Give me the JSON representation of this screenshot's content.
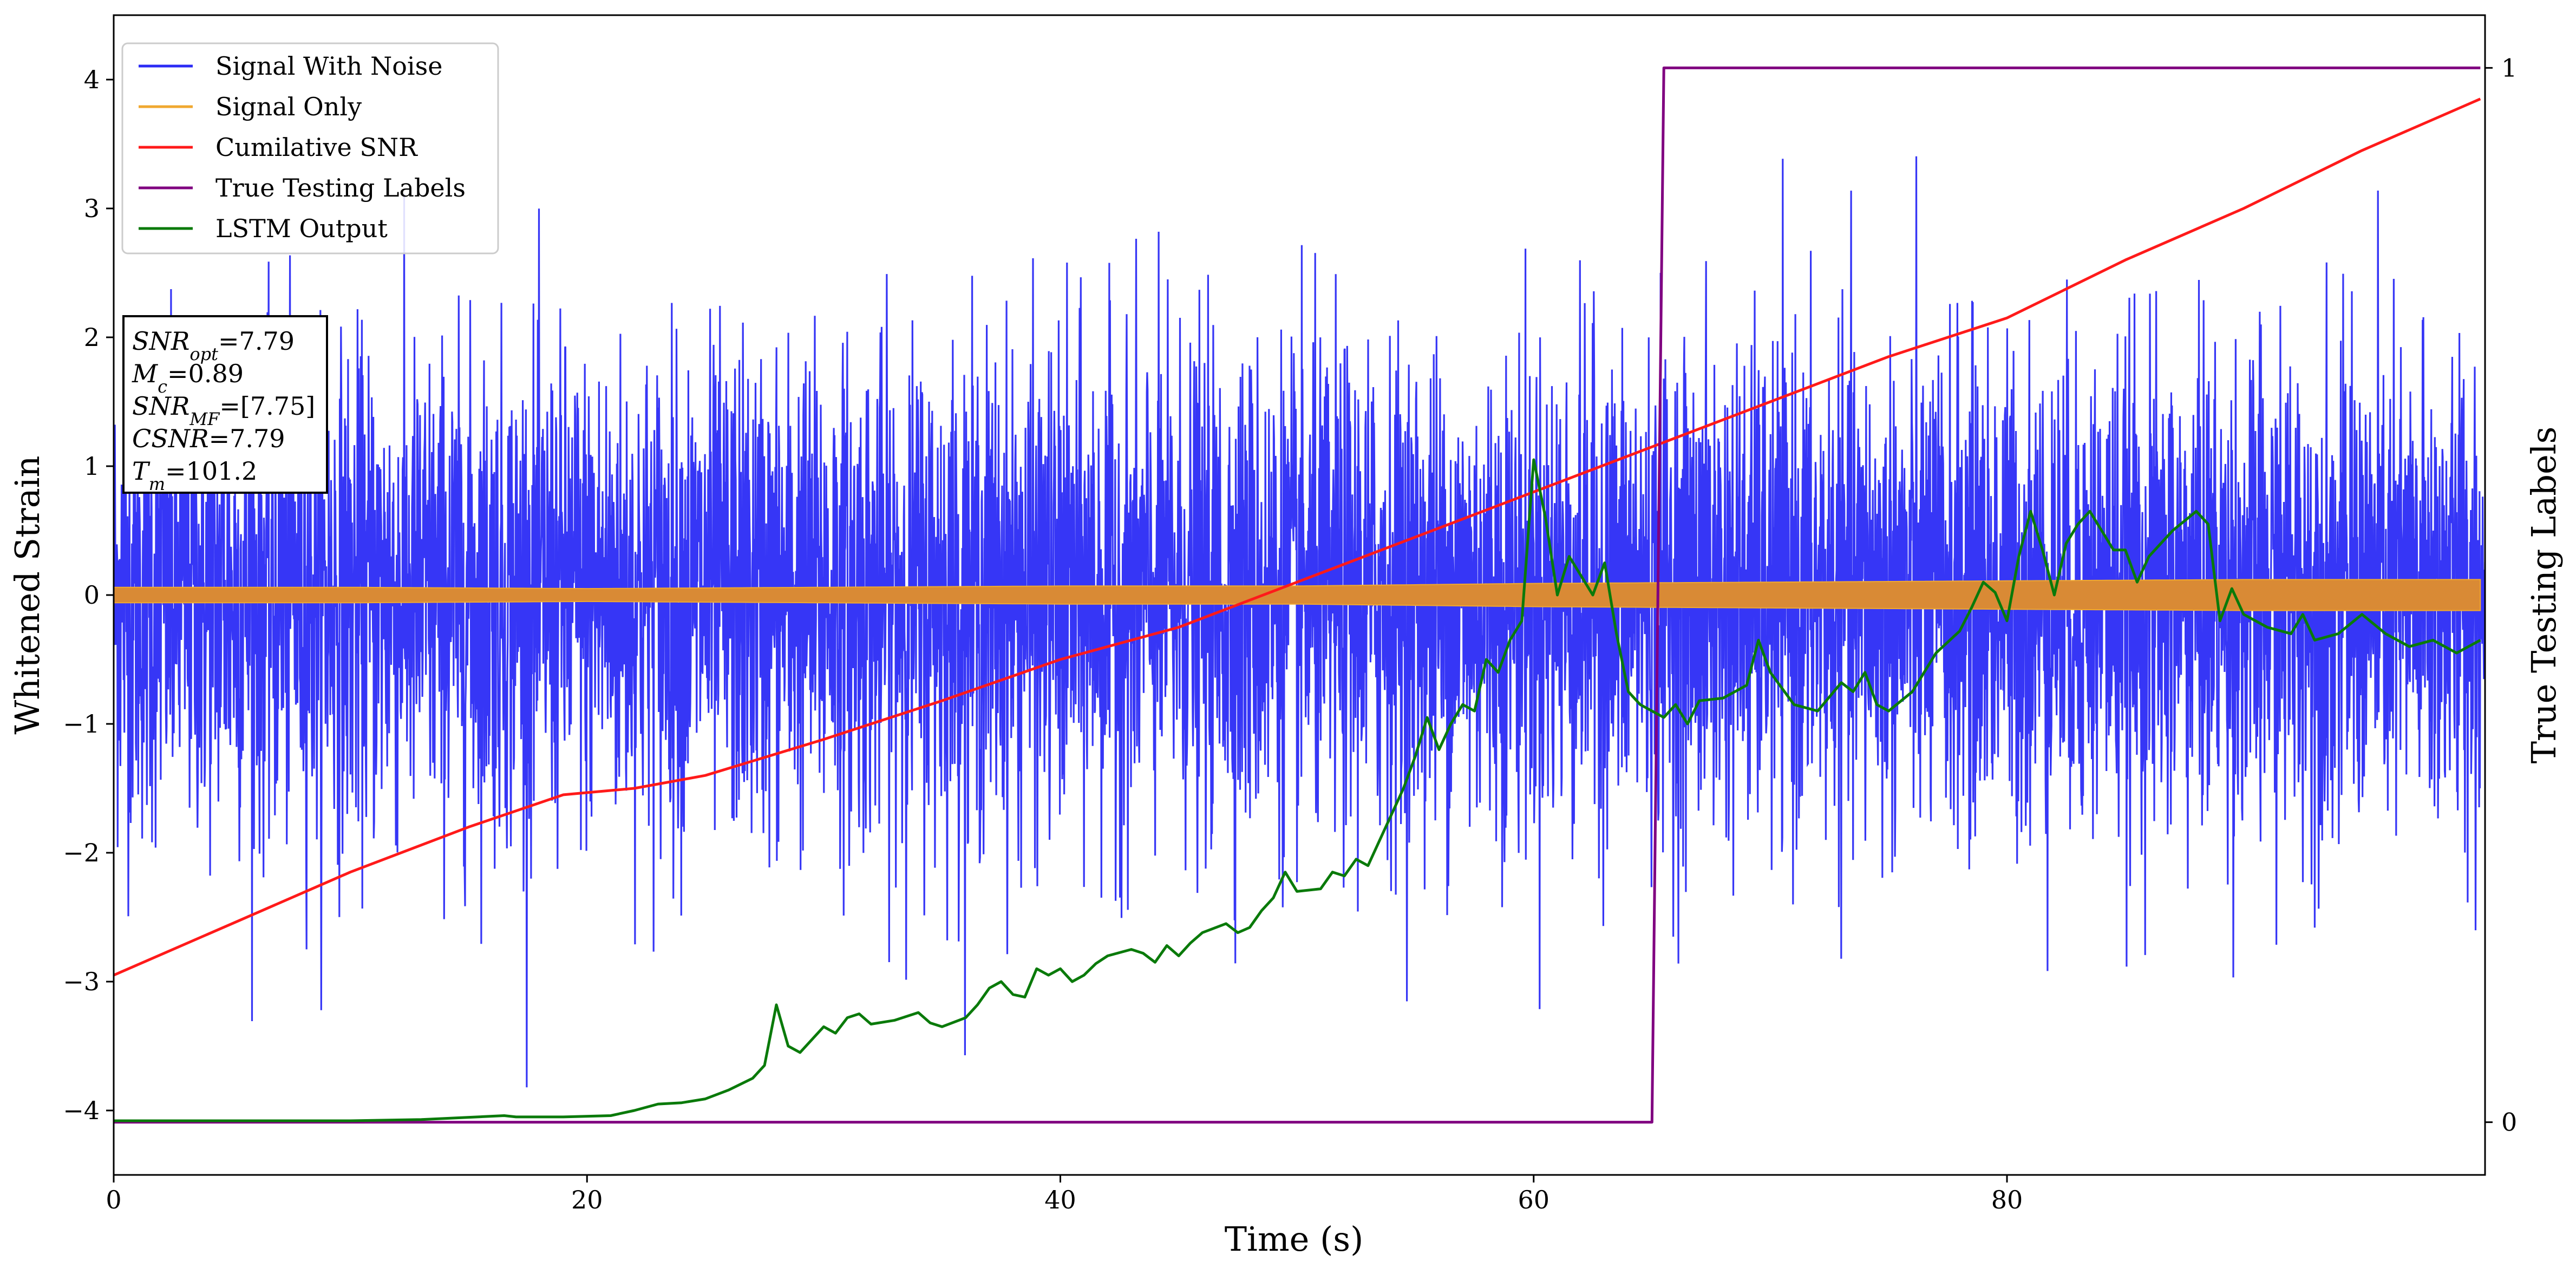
{
  "chart_data": {
    "type": "line",
    "xlabel": "Time (s)",
    "ylabel": "Whitened Strain",
    "ylabel_right": "True Testing Labels",
    "xlim": [
      0,
      100.2
    ],
    "ylim": [
      -4.5,
      4.5
    ],
    "ylim_right": [
      -0.05,
      1.05
    ],
    "x_ticks": [
      0,
      20,
      40,
      60,
      80
    ],
    "y_ticks": [
      -4,
      -3,
      -2,
      -1,
      0,
      1,
      2,
      3,
      4
    ],
    "y_right_ticks": [
      0,
      1
    ],
    "grid": false,
    "legend_position": "top-left",
    "colors": {
      "signal_with_noise": "#2b2bf5",
      "signal_only": "#f0a830",
      "signal_only_fill": "#d98a35",
      "cumulative_snr": "#ff1a1a",
      "true_labels": "#800080",
      "lstm_output": "#0a7a0a"
    },
    "legend": [
      {
        "name": "Signal With Noise",
        "color": "#2b2bf5"
      },
      {
        "name": "Signal Only",
        "color": "#f0a830"
      },
      {
        "name": "Cumilative SNR",
        "color": "#ff1a1a"
      },
      {
        "name": "True Testing Labels",
        "color": "#800080"
      },
      {
        "name": "LSTM Output",
        "color": "#0a7a0a"
      }
    ],
    "stats": {
      "snr_opt": {
        "label_main": "SNR",
        "label_sub": "opt",
        "value": "=7.79"
      },
      "mc": {
        "label_main": "M",
        "label_sub": "c",
        "value": "=0.89"
      },
      "snr_mf": {
        "label_main": "SNR",
        "label_sub": "MF",
        "value": "=[7.75]"
      },
      "csnr": {
        "label_main": "CSNR",
        "label_sub": "",
        "value": "=7.79"
      },
      "tm": {
        "label_main": "T",
        "label_sub": "m",
        "value": "=101.2"
      }
    },
    "series": [
      {
        "name": "Signal With Noise",
        "axis": "left",
        "description_range": [
          -4.1,
          4.1
        ],
        "typical_amplitude": 1.0
      },
      {
        "name": "Signal Only",
        "axis": "left",
        "envelope": [
          [
            0,
            0.06
          ],
          [
            10,
            0.06
          ],
          [
            20,
            0.05
          ],
          [
            30,
            0.06
          ],
          [
            40,
            0.07
          ],
          [
            50,
            0.07
          ],
          [
            60,
            0.09
          ],
          [
            70,
            0.1
          ],
          [
            80,
            0.11
          ],
          [
            90,
            0.12
          ],
          [
            100,
            0.12
          ]
        ]
      },
      {
        "name": "Cumilative SNR",
        "axis": "left",
        "points": [
          [
            0,
            -2.95
          ],
          [
            5,
            -2.55
          ],
          [
            10,
            -2.15
          ],
          [
            15,
            -1.8
          ],
          [
            19,
            -1.55
          ],
          [
            22,
            -1.5
          ],
          [
            25,
            -1.4
          ],
          [
            30,
            -1.12
          ],
          [
            35,
            -0.82
          ],
          [
            40,
            -0.5
          ],
          [
            45,
            -0.25
          ],
          [
            50,
            0.1
          ],
          [
            55,
            0.45
          ],
          [
            60,
            0.8
          ],
          [
            65,
            1.15
          ],
          [
            70,
            1.5
          ],
          [
            75,
            1.85
          ],
          [
            80,
            2.15
          ],
          [
            85,
            2.6
          ],
          [
            90,
            3.0
          ],
          [
            95,
            3.45
          ],
          [
            100,
            3.85
          ]
        ]
      },
      {
        "name": "True Testing Labels",
        "axis": "right",
        "points": [
          [
            0,
            0
          ],
          [
            65.0,
            0
          ],
          [
            65.5,
            1
          ],
          [
            100,
            1
          ]
        ]
      },
      {
        "name": "LSTM Output",
        "axis": "left",
        "points": [
          [
            0,
            -4.08
          ],
          [
            10,
            -4.08
          ],
          [
            13,
            -4.07
          ],
          [
            16.5,
            -4.04
          ],
          [
            17,
            -4.05
          ],
          [
            19,
            -4.05
          ],
          [
            21,
            -4.04
          ],
          [
            22,
            -4.0
          ],
          [
            23,
            -3.95
          ],
          [
            24,
            -3.94
          ],
          [
            25,
            -3.91
          ],
          [
            26,
            -3.84
          ],
          [
            27,
            -3.75
          ],
          [
            27.5,
            -3.65
          ],
          [
            28,
            -3.18
          ],
          [
            28.5,
            -3.5
          ],
          [
            29,
            -3.55
          ],
          [
            30,
            -3.35
          ],
          [
            30.5,
            -3.4
          ],
          [
            31,
            -3.28
          ],
          [
            31.5,
            -3.25
          ],
          [
            32,
            -3.33
          ],
          [
            33,
            -3.3
          ],
          [
            34,
            -3.24
          ],
          [
            34.5,
            -3.32
          ],
          [
            35,
            -3.35
          ],
          [
            36,
            -3.28
          ],
          [
            36.5,
            -3.18
          ],
          [
            37,
            -3.05
          ],
          [
            37.5,
            -3.0
          ],
          [
            38,
            -3.1
          ],
          [
            38.5,
            -3.12
          ],
          [
            39,
            -2.9
          ],
          [
            39.5,
            -2.95
          ],
          [
            40,
            -2.9
          ],
          [
            40.5,
            -3.0
          ],
          [
            41,
            -2.95
          ],
          [
            41.5,
            -2.86
          ],
          [
            42,
            -2.8
          ],
          [
            43,
            -2.75
          ],
          [
            43.5,
            -2.78
          ],
          [
            44,
            -2.85
          ],
          [
            44.5,
            -2.72
          ],
          [
            45,
            -2.8
          ],
          [
            45.5,
            -2.7
          ],
          [
            46,
            -2.62
          ],
          [
            47,
            -2.55
          ],
          [
            47.5,
            -2.62
          ],
          [
            48,
            -2.58
          ],
          [
            48.5,
            -2.45
          ],
          [
            49,
            -2.35
          ],
          [
            49.5,
            -2.15
          ],
          [
            50,
            -2.3
          ],
          [
            51,
            -2.28
          ],
          [
            51.5,
            -2.15
          ],
          [
            52,
            -2.18
          ],
          [
            52.5,
            -2.05
          ],
          [
            53,
            -2.1
          ],
          [
            53.5,
            -1.9
          ],
          [
            54,
            -1.7
          ],
          [
            54.5,
            -1.5
          ],
          [
            55,
            -1.25
          ],
          [
            55.5,
            -0.95
          ],
          [
            56,
            -1.2
          ],
          [
            56.5,
            -1.0
          ],
          [
            57,
            -0.85
          ],
          [
            57.5,
            -0.9
          ],
          [
            58,
            -0.5
          ],
          [
            58.5,
            -0.6
          ],
          [
            59,
            -0.35
          ],
          [
            59.5,
            -0.2
          ],
          [
            60,
            1.05
          ],
          [
            60.5,
            0.6
          ],
          [
            61,
            0.0
          ],
          [
            61.5,
            0.3
          ],
          [
            62,
            0.15
          ],
          [
            62.5,
            0.0
          ],
          [
            63,
            0.25
          ],
          [
            63.5,
            -0.3
          ],
          [
            64,
            -0.75
          ],
          [
            64.5,
            -0.85
          ],
          [
            65,
            -0.9
          ],
          [
            65.5,
            -0.95
          ],
          [
            66,
            -0.85
          ],
          [
            66.5,
            -1.0
          ],
          [
            67,
            -0.82
          ],
          [
            68,
            -0.8
          ],
          [
            69,
            -0.7
          ],
          [
            69.5,
            -0.35
          ],
          [
            70,
            -0.6
          ],
          [
            71,
            -0.85
          ],
          [
            72,
            -0.9
          ],
          [
            73,
            -0.68
          ],
          [
            73.5,
            -0.75
          ],
          [
            74,
            -0.6
          ],
          [
            74.5,
            -0.85
          ],
          [
            75,
            -0.9
          ],
          [
            76,
            -0.75
          ],
          [
            76.5,
            -0.6
          ],
          [
            77,
            -0.45
          ],
          [
            78,
            -0.28
          ],
          [
            78.5,
            -0.1
          ],
          [
            79,
            0.1
          ],
          [
            79.5,
            0.02
          ],
          [
            80,
            -0.2
          ],
          [
            80.5,
            0.3
          ],
          [
            81,
            0.65
          ],
          [
            81.5,
            0.35
          ],
          [
            82,
            0.0
          ],
          [
            82.5,
            0.4
          ],
          [
            83,
            0.55
          ],
          [
            83.5,
            0.65
          ],
          [
            84,
            0.5
          ],
          [
            84.5,
            0.35
          ],
          [
            85,
            0.35
          ],
          [
            85.5,
            0.1
          ],
          [
            86,
            0.3
          ],
          [
            87,
            0.5
          ],
          [
            88,
            0.65
          ],
          [
            88.5,
            0.55
          ],
          [
            89,
            -0.2
          ],
          [
            89.5,
            0.05
          ],
          [
            90,
            -0.15
          ],
          [
            91,
            -0.25
          ],
          [
            92,
            -0.3
          ],
          [
            92.5,
            -0.15
          ],
          [
            93,
            -0.35
          ],
          [
            94,
            -0.3
          ],
          [
            95,
            -0.15
          ],
          [
            96,
            -0.3
          ],
          [
            97,
            -0.4
          ],
          [
            98,
            -0.35
          ],
          [
            99,
            -0.45
          ],
          [
            100,
            -0.35
          ]
        ]
      }
    ]
  }
}
